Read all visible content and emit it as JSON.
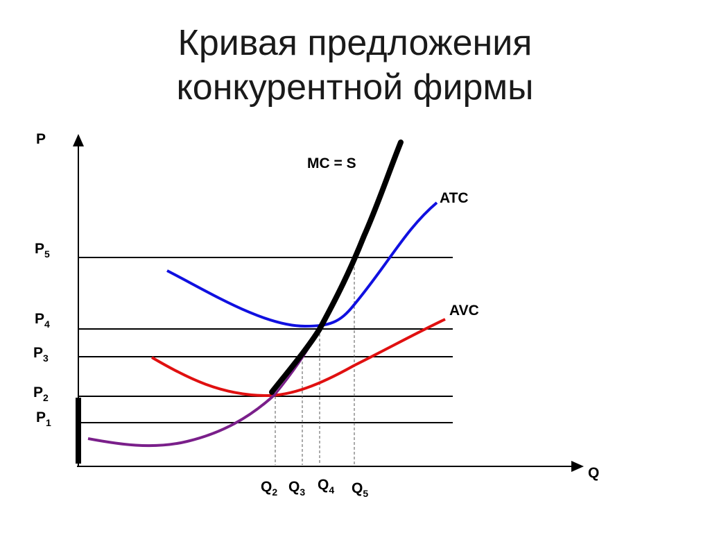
{
  "title": {
    "line1": "Кривая предложения",
    "line2": "конкурентной фирмы"
  },
  "axes": {
    "y_label": "P",
    "x_label": "Q"
  },
  "price_levels": [
    {
      "base": "P",
      "sub": "5"
    },
    {
      "base": "P",
      "sub": "4"
    },
    {
      "base": "P",
      "sub": "3"
    },
    {
      "base": "P",
      "sub": "2"
    },
    {
      "base": "P",
      "sub": "1"
    }
  ],
  "quantity_levels": [
    {
      "base": "Q",
      "sub": "2"
    },
    {
      "base": "Q",
      "sub": "3"
    },
    {
      "base": "Q",
      "sub": "4"
    },
    {
      "base": "Q",
      "sub": "5"
    }
  ],
  "curves": {
    "mc": {
      "label": "MC = S",
      "color": "#000000",
      "lower_color": "#7a1f8a"
    },
    "atc": {
      "label": "ATC",
      "color": "#1010e0"
    },
    "avc": {
      "label": "AVC",
      "color": "#e01010"
    }
  },
  "colors": {
    "axis": "#000000",
    "price_line": "#000000",
    "dashed": "#555555"
  }
}
